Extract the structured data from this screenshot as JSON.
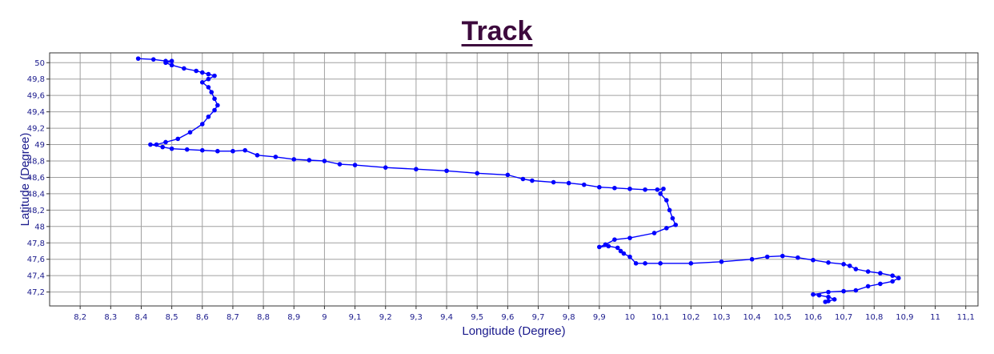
{
  "chart_data": {
    "type": "scatter",
    "title": "Track",
    "xlabel": "Longitude (Degree)",
    "ylabel": "Latitude (Degree)",
    "xlim": [
      8.1,
      11.14
    ],
    "ylim": [
      47.03,
      50.12
    ],
    "x_ticks": [
      "8,2",
      "8,3",
      "8,4",
      "8,5",
      "8,6",
      "8,7",
      "8,8",
      "8,9",
      "9",
      "9,1",
      "9,2",
      "9,3",
      "9,4",
      "9,5",
      "9,6",
      "9,7",
      "9,8",
      "9,9",
      "10",
      "10,1",
      "10,2",
      "10,3",
      "10,4",
      "10,5",
      "10,6",
      "10,7",
      "10,8",
      "10,9",
      "11",
      "11,1"
    ],
    "y_ticks": [
      "47,2",
      "47,4",
      "47,6",
      "47,8",
      "48",
      "48,2",
      "48,4",
      "48,6",
      "48,8",
      "49",
      "49,2",
      "49,4",
      "49,6",
      "49,8",
      "50"
    ],
    "grid": true,
    "colors": {
      "title": "#3d0a3d",
      "series": "#0000ff",
      "axis_text": "#1a1a8c",
      "grid": "#a0a0a0"
    },
    "series": [
      {
        "points": [
          [
            8.39,
            50.05
          ],
          [
            8.44,
            50.04
          ],
          [
            8.48,
            50.02
          ],
          [
            8.5,
            50.02
          ],
          [
            8.48,
            50
          ],
          [
            8.5,
            49.97
          ],
          [
            8.54,
            49.93
          ],
          [
            8.58,
            49.9
          ],
          [
            8.6,
            49.88
          ],
          [
            8.62,
            49.86
          ],
          [
            8.64,
            49.84
          ],
          [
            8.62,
            49.8
          ],
          [
            8.6,
            49.76
          ],
          [
            8.62,
            49.7
          ],
          [
            8.63,
            49.64
          ],
          [
            8.64,
            49.56
          ],
          [
            8.65,
            49.48
          ],
          [
            8.64,
            49.42
          ],
          [
            8.62,
            49.34
          ],
          [
            8.6,
            49.25
          ],
          [
            8.56,
            49.15
          ],
          [
            8.52,
            49.07
          ],
          [
            8.48,
            49.03
          ],
          [
            8.45,
            49
          ],
          [
            8.43,
            49
          ],
          [
            8.47,
            48.97
          ],
          [
            8.5,
            48.95
          ],
          [
            8.55,
            48.94
          ],
          [
            8.6,
            48.93
          ],
          [
            8.65,
            48.92
          ],
          [
            8.7,
            48.92
          ],
          [
            8.74,
            48.93
          ],
          [
            8.78,
            48.87
          ],
          [
            8.84,
            48.85
          ],
          [
            8.9,
            48.82
          ],
          [
            8.95,
            48.81
          ],
          [
            9.0,
            48.8
          ],
          [
            9.05,
            48.76
          ],
          [
            9.1,
            48.75
          ],
          [
            9.2,
            48.72
          ],
          [
            9.3,
            48.7
          ],
          [
            9.4,
            48.68
          ],
          [
            9.5,
            48.65
          ],
          [
            9.6,
            48.63
          ],
          [
            9.65,
            48.58
          ],
          [
            9.68,
            48.56
          ],
          [
            9.75,
            48.54
          ],
          [
            9.8,
            48.53
          ],
          [
            9.85,
            48.51
          ],
          [
            9.9,
            48.48
          ],
          [
            9.95,
            48.47
          ],
          [
            10.0,
            48.46
          ],
          [
            10.05,
            48.45
          ],
          [
            10.09,
            48.45
          ],
          [
            10.11,
            48.46
          ],
          [
            10.1,
            48.4
          ],
          [
            10.12,
            48.32
          ],
          [
            10.13,
            48.2
          ],
          [
            10.14,
            48.1
          ],
          [
            10.15,
            48.02
          ],
          [
            10.12,
            47.98
          ],
          [
            10.08,
            47.92
          ],
          [
            10.0,
            47.86
          ],
          [
            9.95,
            47.84
          ],
          [
            9.92,
            47.78
          ],
          [
            9.9,
            47.75
          ],
          [
            9.93,
            47.76
          ],
          [
            9.96,
            47.74
          ],
          [
            9.97,
            47.7
          ],
          [
            9.98,
            47.67
          ],
          [
            10.0,
            47.63
          ],
          [
            10.02,
            47.55
          ],
          [
            10.05,
            47.55
          ],
          [
            10.1,
            47.55
          ],
          [
            10.2,
            47.55
          ],
          [
            10.3,
            47.57
          ],
          [
            10.4,
            47.6
          ],
          [
            10.45,
            47.63
          ],
          [
            10.5,
            47.64
          ],
          [
            10.55,
            47.62
          ],
          [
            10.6,
            47.59
          ],
          [
            10.65,
            47.56
          ],
          [
            10.7,
            47.54
          ],
          [
            10.72,
            47.52
          ],
          [
            10.74,
            47.48
          ],
          [
            10.78,
            47.45
          ],
          [
            10.82,
            47.43
          ],
          [
            10.86,
            47.4
          ],
          [
            10.88,
            47.37
          ],
          [
            10.86,
            47.33
          ],
          [
            10.82,
            47.3
          ],
          [
            10.78,
            47.27
          ],
          [
            10.74,
            47.22
          ],
          [
            10.7,
            47.21
          ],
          [
            10.65,
            47.2
          ],
          [
            10.6,
            47.17
          ],
          [
            10.62,
            47.16
          ],
          [
            10.65,
            47.14
          ],
          [
            10.67,
            47.11
          ],
          [
            10.65,
            47.09
          ],
          [
            10.64,
            47.08
          ]
        ]
      }
    ]
  }
}
